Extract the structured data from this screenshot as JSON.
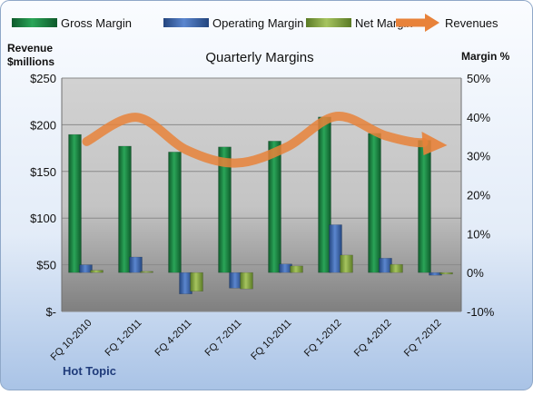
{
  "chart_data": {
    "type": "bar",
    "title": "Quarterly Margins",
    "left_axis_title_line1": "Revenue",
    "left_axis_title_line2": "$millions",
    "right_axis_title": "Margin %",
    "footer": "Hot Topic",
    "categories": [
      "FQ 10-2010",
      "FQ 1-2011",
      "FQ 4-2011",
      "FQ 7-2011",
      "FQ 10-2011",
      "FQ 1-2012",
      "FQ 4-2012",
      "FQ 7-2012"
    ],
    "left_ticks": [
      "$-",
      "$50",
      "$100",
      "$150",
      "$200",
      "$250"
    ],
    "right_ticks": [
      "-10%",
      "0%",
      "10%",
      "20%",
      "30%",
      "40%",
      "50%"
    ],
    "ylim_left": [
      0,
      250
    ],
    "ylim_right": [
      -10,
      50
    ],
    "grid": true,
    "legend_position": "top",
    "series": [
      {
        "name": "Gross Margin",
        "axis": "right",
        "color": "#1e8a48",
        "values": [
          35.5,
          32.5,
          31.0,
          32.3,
          33.8,
          40.0,
          35.8,
          34.0
        ]
      },
      {
        "name": "Operating Margin",
        "axis": "right",
        "color": "#4470b8",
        "values": [
          2.0,
          4.0,
          -5.5,
          -4.0,
          2.2,
          12.3,
          3.7,
          -0.7
        ]
      },
      {
        "name": "Net Margin",
        "axis": "right",
        "color": "#8cae47",
        "values": [
          0.6,
          0.3,
          -4.8,
          -4.2,
          1.7,
          4.5,
          2.1,
          -0.4
        ]
      }
    ],
    "revenue": {
      "name": "Revenues",
      "axis": "left",
      "color": "#e8823a",
      "values": [
        182,
        208,
        173,
        159,
        176,
        209,
        188,
        178
      ]
    }
  }
}
